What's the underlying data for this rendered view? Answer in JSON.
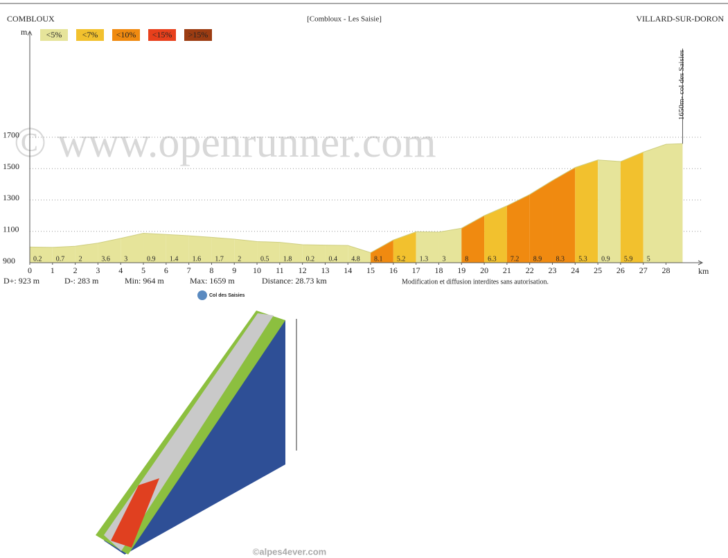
{
  "header": {
    "left": "COMBLOUX",
    "center": "[Combloux - Les Saisie]",
    "right": "VILLARD-SUR-DORON"
  },
  "chart_data": {
    "type": "area",
    "watermark": "© www.openrunner.com",
    "y_unit": "m",
    "x_unit": "km",
    "legend": [
      {
        "label": "<5%",
        "color": "#e6e49a"
      },
      {
        "label": "<7%",
        "color": "#f2c12e"
      },
      {
        "label": "<10%",
        "color": "#f08a10"
      },
      {
        "label": "<15%",
        "color": "#e8401c"
      },
      {
        "label": ">15%",
        "color": "#9c3c12"
      }
    ],
    "x": [
      0,
      1,
      2,
      3,
      4,
      5,
      6,
      7,
      8,
      9,
      10,
      11,
      12,
      13,
      14,
      15,
      16,
      17,
      18,
      19,
      20,
      21,
      22,
      23,
      24,
      25,
      26,
      27,
      28,
      28.73
    ],
    "values": [
      1000,
      998,
      1005,
      1025,
      1055,
      1088,
      1080,
      1072,
      1062,
      1050,
      1035,
      1030,
      1015,
      1012,
      1010,
      964,
      1045,
      1097,
      1095,
      1120,
      1200,
      1263,
      1335,
      1424,
      1507,
      1555,
      1545,
      1605,
      1655,
      1659
    ],
    "segment_labels": [
      0.2,
      0.7,
      2,
      3.6,
      3,
      0.9,
      1.4,
      1.6,
      1.7,
      2,
      0.5,
      1.8,
      0.2,
      0.4,
      4.8,
      8.1,
      5.2,
      1.3,
      3,
      8,
      6.3,
      7.2,
      8.9,
      8.3,
      5.3,
      0.9,
      5.9,
      5,
      null
    ],
    "segment_colors": [
      "#e6e49a",
      "#e6e49a",
      "#e6e49a",
      "#e6e49a",
      "#e6e49a",
      "#e6e49a",
      "#e6e49a",
      "#e6e49a",
      "#e6e49a",
      "#e6e49a",
      "#e6e49a",
      "#e6e49a",
      "#e6e49a",
      "#e6e49a",
      "#e6e49a",
      "#f08a10",
      "#f2c12e",
      "#e6e49a",
      "#e6e49a",
      "#f08a10",
      "#f2c12e",
      "#f08a10",
      "#f08a10",
      "#f08a10",
      "#f2c12e",
      "#e6e49a",
      "#f2c12e",
      "#e6e49a",
      "#e6e49a"
    ],
    "xlim": [
      0,
      29.6
    ],
    "ylim": [
      900,
      2376
    ],
    "xticks": [
      0,
      1,
      2,
      3,
      4,
      5,
      6,
      7,
      8,
      9,
      10,
      11,
      12,
      13,
      14,
      15,
      16,
      17,
      18,
      19,
      20,
      21,
      22,
      23,
      24,
      25,
      26,
      27,
      28
    ],
    "yticks": [
      900,
      1100,
      1300,
      1500,
      1700
    ],
    "grid": true,
    "summit_label": "1650m- col des Saisies"
  },
  "stats": [
    "D+: 923 m",
    "D-: 283 m",
    "Min: 964 m",
    "Max: 1659 m",
    "Distance: 28.73 km"
  ],
  "notice": "Modification et diffusion interdites sans autorisation.",
  "photo": {
    "title": "Col des Saisies",
    "credit": "©alpes4ever.com"
  }
}
